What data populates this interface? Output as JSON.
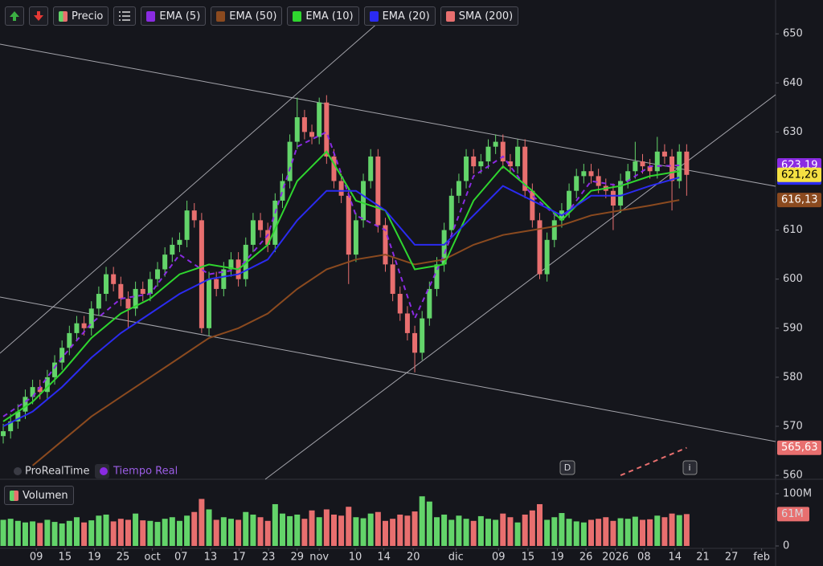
{
  "chart_data": [
    {
      "type": "candlestick",
      "legend_label": "Precio",
      "up_color": "#63d46a",
      "down_color": "#e86f6f",
      "ylim": [
        559.2,
        656.9
      ],
      "yticks": [
        560,
        570,
        580,
        590,
        600,
        610,
        630,
        640,
        650
      ],
      "open": [
        568,
        569,
        571,
        573,
        576,
        578,
        577,
        580,
        583,
        586,
        589,
        591,
        590,
        594,
        597,
        601,
        599,
        596,
        594,
        598,
        597,
        600,
        602,
        605,
        607,
        608,
        614,
        612,
        590,
        600,
        598,
        602,
        604,
        600,
        607,
        612,
        610,
        607,
        616,
        620,
        628,
        633,
        630,
        629,
        636,
        625,
        620,
        617,
        605,
        612,
        620,
        625,
        611,
        603,
        597,
        593,
        589,
        585,
        592,
        598,
        603,
        610,
        617,
        620,
        625,
        623,
        624,
        627,
        628,
        624,
        623,
        627,
        618,
        612,
        601,
        608,
        612,
        614,
        618,
        621,
        622,
        621,
        619,
        618,
        615,
        620,
        622,
        624,
        623,
        622,
        626,
        625,
        620,
        626
      ],
      "high": [
        570.5,
        572.5,
        574.5,
        577.5,
        579.5,
        579.5,
        581.5,
        584.5,
        587.5,
        590.5,
        592.5,
        592.5,
        595.5,
        598.5,
        602.5,
        602.5,
        600.5,
        597.5,
        599.5,
        599.5,
        601.5,
        603.5,
        606.5,
        608.5,
        609.5,
        616,
        615.5,
        613.5,
        601.5,
        601.5,
        603.5,
        605.5,
        605.5,
        608.5,
        613.5,
        613.5,
        611.5,
        617.5,
        621.5,
        629.5,
        637,
        634.5,
        631.5,
        637,
        637.5,
        626.5,
        621.5,
        618.5,
        613.5,
        621.5,
        626.5,
        626.5,
        612.5,
        604.5,
        598.5,
        594.5,
        590.5,
        593.5,
        599.5,
        604.5,
        611.5,
        618.5,
        621.5,
        626.5,
        626.5,
        625.5,
        628.5,
        629.5,
        629.5,
        625.5,
        628.5,
        628.5,
        619.5,
        613.5,
        609.5,
        613.5,
        615.5,
        619.5,
        622.5,
        623.5,
        623.5,
        622.5,
        620.5,
        619.5,
        621.5,
        623.5,
        628,
        625.5,
        624.5,
        629,
        627.5,
        626.5,
        627.5,
        627.5
      ],
      "low": [
        566.5,
        567.5,
        569.5,
        571.5,
        574.5,
        575.5,
        575.5,
        578.5,
        581.5,
        584.5,
        587.5,
        588.5,
        588.5,
        592.5,
        595.5,
        597.5,
        594.5,
        590,
        592.5,
        595.5,
        595.5,
        598.5,
        600.5,
        603.5,
        605.5,
        606.5,
        610.5,
        589,
        588.5,
        596.5,
        596.5,
        600.5,
        598.5,
        598.5,
        605.5,
        608.5,
        605.5,
        605.5,
        614.5,
        618.5,
        626.5,
        628.5,
        627.5,
        627.5,
        623.5,
        618.5,
        615.5,
        599,
        603.5,
        610.5,
        618.5,
        609.5,
        601.5,
        595.5,
        591.5,
        587.5,
        581,
        583.5,
        590.5,
        596.5,
        601.5,
        608.5,
        615.5,
        618.5,
        621.5,
        621.5,
        622.5,
        625.5,
        622.5,
        621.5,
        621.5,
        616.5,
        610.5,
        600,
        599.5,
        606.5,
        610.5,
        612.5,
        616.5,
        619.5,
        619.5,
        617.5,
        616.5,
        610,
        613.5,
        618.5,
        620.5,
        621.5,
        620.5,
        620.5,
        623.5,
        614,
        618.5,
        617
      ],
      "close": [
        569,
        571,
        573,
        576,
        578,
        577,
        580,
        583,
        586,
        589,
        591,
        590,
        594,
        597,
        601,
        599,
        596,
        594,
        598,
        597,
        600,
        602,
        605,
        607,
        608,
        614,
        612,
        590,
        600,
        598,
        602,
        604,
        600,
        607,
        612,
        610,
        607,
        616,
        620,
        628,
        633,
        630,
        629,
        636,
        625,
        620,
        617,
        605,
        612,
        620,
        625,
        611,
        603,
        597,
        593,
        589,
        585,
        592,
        598,
        603,
        610,
        617,
        620,
        625,
        623,
        624,
        627,
        628,
        624,
        623,
        627,
        618,
        612,
        601,
        608,
        612,
        614,
        618,
        621,
        622,
        621,
        619,
        618,
        615,
        620,
        622,
        624,
        623,
        622,
        626,
        625,
        620,
        626,
        621.26
      ],
      "close_labels": [
        null,
        null,
        null,
        null,
        null,
        null,
        null,
        null,
        null,
        null,
        null,
        null,
        null,
        null,
        null,
        null,
        null,
        null,
        null,
        null,
        null,
        null,
        null,
        null,
        null,
        null,
        null,
        null,
        null,
        null,
        null,
        null,
        null,
        null,
        null,
        null,
        null,
        null,
        null,
        null,
        null,
        null,
        null,
        null,
        null,
        null,
        null,
        null,
        null,
        null,
        null,
        null,
        null,
        null,
        null,
        null,
        null,
        null,
        null,
        null,
        null,
        null,
        null,
        null,
        null,
        null,
        null,
        null,
        null,
        null,
        null,
        null,
        null,
        null,
        null,
        null,
        null,
        null,
        null,
        null,
        null,
        null,
        null,
        null,
        null,
        null,
        null,
        null,
        null,
        null,
        null,
        null,
        null,
        "621,26"
      ],
      "series": [
        {
          "name": "EMA (5)",
          "color": "#8a2be2",
          "dash": true,
          "x": [
            0,
            4,
            8,
            12,
            16,
            20,
            24,
            28,
            32,
            36,
            40,
            44,
            48,
            52,
            56,
            60,
            64,
            68,
            72,
            76,
            80,
            84,
            88,
            92
          ],
          "values": [
            572,
            576,
            584,
            591,
            596,
            597,
            605,
            601,
            602,
            609,
            627,
            630,
            613,
            610,
            592,
            605,
            621,
            625,
            617,
            612,
            620,
            619,
            623,
            623.19
          ],
          "value_labels": [
            null,
            null,
            null,
            null,
            null,
            null,
            null,
            null,
            null,
            null,
            null,
            null,
            null,
            null,
            null,
            null,
            null,
            null,
            null,
            null,
            null,
            null,
            null,
            "623,19"
          ]
        },
        {
          "name": "EMA (50)",
          "color": "#8b4a1f",
          "dash": false,
          "x": [
            4,
            8,
            12,
            16,
            20,
            24,
            28,
            32,
            36,
            40,
            44,
            48,
            52,
            56,
            60,
            64,
            68,
            72,
            76,
            80,
            84,
            88,
            92
          ],
          "values": [
            562,
            567,
            572,
            576,
            580,
            584,
            588,
            590,
            593,
            598,
            602,
            604,
            605,
            603,
            604,
            607,
            609,
            610,
            611,
            613,
            614,
            615,
            616.13
          ],
          "value_labels": [
            null,
            null,
            null,
            null,
            null,
            null,
            null,
            null,
            null,
            null,
            null,
            null,
            null,
            null,
            null,
            null,
            null,
            null,
            null,
            null,
            null,
            null,
            "616,13"
          ]
        },
        {
          "name": "EMA (10)",
          "color": "#2fd62f",
          "dash": false,
          "x": [
            0,
            4,
            8,
            12,
            16,
            20,
            24,
            28,
            32,
            36,
            40,
            44,
            48,
            52,
            56,
            60,
            64,
            68,
            72,
            76,
            80,
            84,
            88,
            92
          ],
          "values": [
            571,
            575,
            581,
            588,
            593,
            596,
            601,
            603,
            602,
            607,
            620,
            626,
            616,
            614,
            602,
            603,
            616,
            623,
            618,
            612,
            618,
            619,
            621,
            622
          ]
        },
        {
          "name": "EMA (20)",
          "color": "#2b2bf0",
          "dash": false,
          "x": [
            0,
            4,
            8,
            12,
            16,
            20,
            24,
            28,
            32,
            36,
            40,
            44,
            48,
            52,
            56,
            60,
            64,
            68,
            72,
            76,
            80,
            84,
            88,
            92
          ],
          "values": [
            570,
            573,
            578,
            584,
            589,
            593,
            597,
            600,
            601,
            604,
            612,
            618,
            618,
            614,
            607,
            607,
            613,
            619,
            616,
            613,
            617,
            617,
            619,
            620.71
          ],
          "value_labels": [
            null,
            null,
            null,
            null,
            null,
            null,
            null,
            null,
            null,
            null,
            null,
            null,
            null,
            null,
            null,
            null,
            null,
            null,
            null,
            null,
            null,
            null,
            null,
            "620,71"
          ]
        },
        {
          "name": "SMA (200)",
          "color": "#e86f6f",
          "dash": true,
          "x": [
            84,
            93
          ],
          "values": [
            560,
            565.63
          ],
          "value_labels": [
            null,
            "565,63"
          ]
        }
      ],
      "annotations": {
        "brand": "ProRealTime",
        "feed": "Tiempo Real",
        "markers": [
          "D",
          "i"
        ]
      }
    },
    {
      "type": "bar",
      "name": "Volumen",
      "ylim": [
        0,
        123
      ],
      "yticks": [
        0,
        {
          "value": 100,
          "label": "100M"
        }
      ],
      "values": [
        50,
        52,
        48,
        45,
        47,
        44,
        50,
        46,
        43,
        48,
        55,
        45,
        49,
        58,
        60,
        47,
        52,
        50,
        62,
        49,
        48,
        46,
        52,
        55,
        48,
        58,
        65,
        90,
        70,
        50,
        55,
        52,
        50,
        65,
        60,
        55,
        48,
        80,
        62,
        57,
        60,
        52,
        68,
        55,
        70,
        60,
        58,
        75,
        55,
        53,
        62,
        65,
        48,
        52,
        60,
        58,
        66,
        95,
        85,
        55,
        60,
        50,
        58,
        52,
        48,
        57,
        52,
        50,
        62,
        55,
        45,
        60,
        68,
        80,
        50,
        55,
        63,
        52,
        47,
        45,
        50,
        52,
        55,
        48,
        53,
        52,
        56,
        50,
        51,
        58,
        55,
        62,
        59,
        61
      ],
      "value_labels": [
        null,
        null,
        null,
        null,
        null,
        null,
        null,
        null,
        null,
        null,
        null,
        null,
        null,
        null,
        null,
        null,
        null,
        null,
        null,
        null,
        null,
        null,
        null,
        null,
        null,
        null,
        null,
        null,
        null,
        null,
        null,
        null,
        null,
        null,
        null,
        null,
        null,
        null,
        null,
        null,
        null,
        null,
        null,
        null,
        null,
        null,
        null,
        null,
        null,
        null,
        null,
        null,
        null,
        null,
        null,
        null,
        null,
        null,
        null,
        null,
        null,
        null,
        null,
        null,
        null,
        null,
        null,
        null,
        null,
        null,
        null,
        null,
        null,
        null,
        null,
        null,
        null,
        null,
        null,
        null,
        null,
        null,
        null,
        null,
        null,
        null,
        null,
        null,
        null,
        null,
        null,
        null,
        null,
        "61M"
      ],
      "xlim": [
        -0.44,
        105.1
      ],
      "xticks": [
        {
          "value": 4.5,
          "label": "09"
        },
        {
          "value": 8.4,
          "label": "15"
        },
        {
          "value": 12.4,
          "label": "19"
        },
        {
          "value": 16.3,
          "label": "25"
        },
        {
          "value": 20.3,
          "label": "oct"
        },
        {
          "value": 24.2,
          "label": "07"
        },
        {
          "value": 28.2,
          "label": "13"
        },
        {
          "value": 32.1,
          "label": "17"
        },
        {
          "value": 36.1,
          "label": "23"
        },
        {
          "value": 40,
          "label": "29"
        },
        {
          "value": 43,
          "label": "nov"
        },
        {
          "value": 47.9,
          "label": "10"
        },
        {
          "value": 51.8,
          "label": "14"
        },
        {
          "value": 55.8,
          "label": "20"
        },
        {
          "value": 61.6,
          "label": "dic"
        },
        {
          "value": 67.4,
          "label": "09"
        },
        {
          "value": 71.4,
          "label": "15"
        },
        {
          "value": 75.4,
          "label": "19"
        },
        {
          "value": 79.3,
          "label": "26"
        },
        {
          "value": 83.3,
          "label": "2026"
        },
        {
          "value": 87.2,
          "label": "08"
        },
        {
          "value": 91.4,
          "label": "14"
        },
        {
          "value": 95.2,
          "label": "21"
        },
        {
          "value": 99.1,
          "label": "27"
        },
        {
          "value": 103.2,
          "label": "feb"
        }
      ]
    }
  ]
}
